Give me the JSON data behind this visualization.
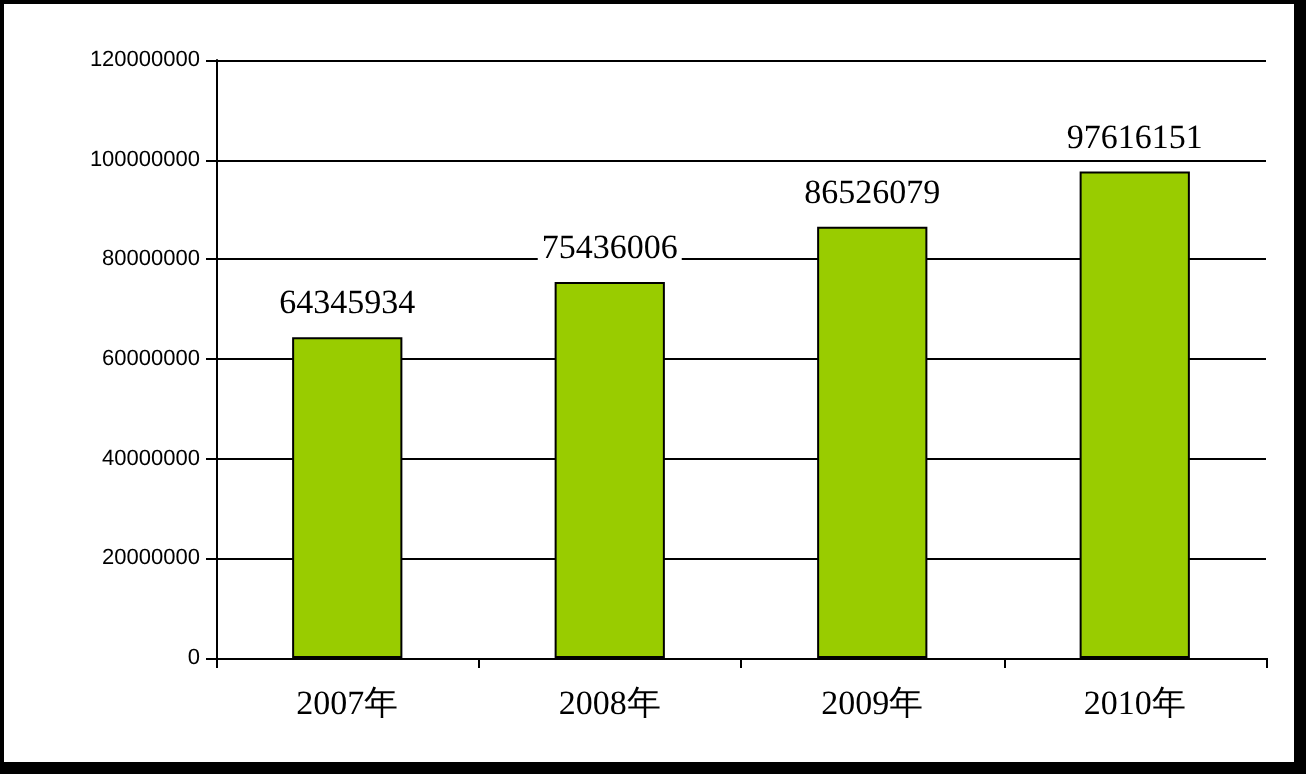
{
  "chart_data": {
    "type": "bar",
    "categories": [
      "2007年",
      "2008年",
      "2009年",
      "2010年"
    ],
    "values": [
      64345934,
      75436006,
      86526079,
      97616151
    ],
    "color": "#99cc00",
    "ylim": [
      0,
      120000000
    ],
    "yticks": [
      0,
      20000000,
      40000000,
      60000000,
      80000000,
      100000000,
      120000000
    ],
    "grid": "y",
    "data_labels": true
  }
}
